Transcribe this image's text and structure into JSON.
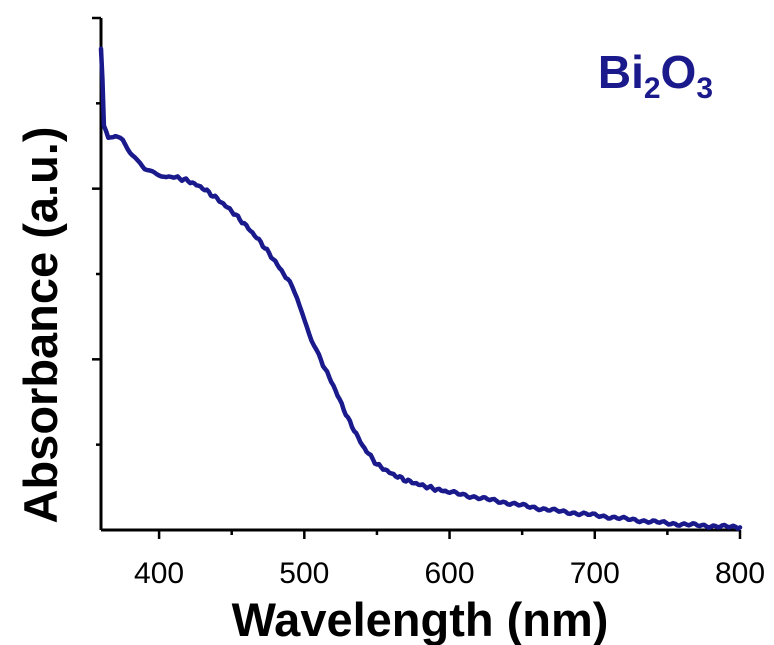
{
  "chart_data": {
    "type": "line",
    "title": "",
    "xlabel": "Wavelength (nm)",
    "ylabel": "Absorbance (a.u.)",
    "xlim": [
      360,
      800
    ],
    "ylim": [
      0,
      1
    ],
    "x_ticks": [
      400,
      500,
      600,
      700,
      800
    ],
    "y_tick_labels_shown": false,
    "grid": false,
    "legend_placement": "top-right",
    "line_color": "#1a1a8c",
    "annotation": {
      "base1": "Bi",
      "sub1": "2",
      "base2": "O",
      "sub2": "3"
    },
    "series": [
      {
        "name": "",
        "x": [
          360,
          361,
          362,
          365,
          370,
          375,
          380,
          385,
          390,
          395,
          400,
          405,
          410,
          420,
          430,
          440,
          450,
          460,
          470,
          480,
          490,
          495,
          500,
          505,
          510,
          520,
          530,
          540,
          550,
          560,
          570,
          580,
          590,
          600,
          620,
          640,
          660,
          680,
          700,
          720,
          740,
          760,
          780,
          800
        ],
        "y": [
          0.94,
          0.88,
          0.79,
          0.765,
          0.77,
          0.76,
          0.74,
          0.72,
          0.706,
          0.7,
          0.695,
          0.686,
          0.69,
          0.682,
          0.668,
          0.647,
          0.623,
          0.594,
          0.562,
          0.524,
          0.483,
          0.454,
          0.41,
          0.372,
          0.34,
          0.282,
          0.218,
          0.165,
          0.128,
          0.11,
          0.097,
          0.088,
          0.08,
          0.074,
          0.063,
          0.053,
          0.043,
          0.035,
          0.029,
          0.022,
          0.016,
          0.011,
          0.008,
          0.005
        ]
      }
    ]
  }
}
